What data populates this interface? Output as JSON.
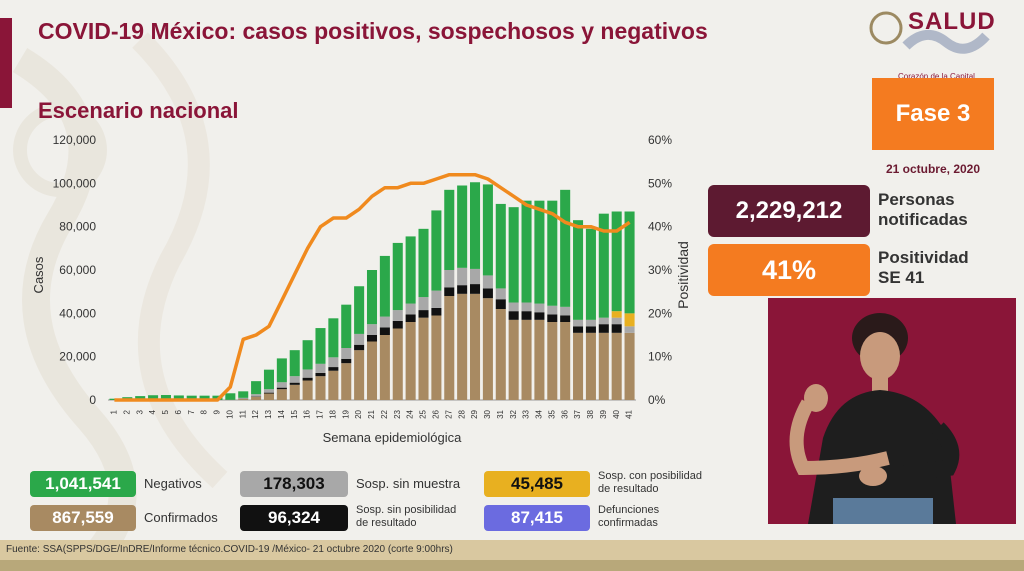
{
  "header": {
    "title": "COVID-19 México: casos positivos, sospechosos y negativos",
    "subtitle": "Escenario nacional"
  },
  "branding": {
    "logo_text": "SALUD",
    "tagline": "Corazón de la Capital"
  },
  "phase": {
    "label": "Fase 3",
    "date": "21 octubre, 2020"
  },
  "stats": {
    "notified_value": "2,229,212",
    "notified_label_line1": "Personas",
    "notified_label_line2": "notificadas",
    "positivity_value": "41%",
    "positivity_label_line1": "Positividad",
    "positivity_label_line2": "SE 41"
  },
  "legend": {
    "negativos": {
      "value": "1,041,541",
      "label": "Negativos"
    },
    "sosp_sin_muestra": {
      "value": "178,303",
      "label": "Sosp. sin muestra"
    },
    "sosp_con_posibilidad": {
      "value": "45,485",
      "label_line1": "Sosp. con posibilidad",
      "label_line2": "de resultado"
    },
    "confirmados": {
      "value": "867,559",
      "label": "Confirmados"
    },
    "sosp_sin_posibilidad": {
      "value": "96,324",
      "label_line1": "Sosp. sin posibilidad",
      "label_line2": "de resultado"
    },
    "defunciones": {
      "value": "87,415",
      "label_line1": "Defunciones",
      "label_line2": "confirmadas"
    }
  },
  "footer": {
    "source": "Fuente: SSA(SPPS/DGE/InDRE/Informe técnico.COVID-19 /México- 21 octubre 2020 (corte 9:00hrs)"
  },
  "colors": {
    "confirmados": "#a88a62",
    "sosp_sin_posibilidad": "#111111",
    "sosp_sin_muestra": "#a8a8a8",
    "sosp_con_posibilidad": "#e8b020",
    "negativos": "#2ba84a",
    "positividad_line": "#f08a1e",
    "defunciones": "#6b6be0"
  },
  "chart_data": {
    "type": "bar",
    "stacked": true,
    "xlabel": "Semana epidemiológica",
    "ylabel": "Casos",
    "y2label": "Positividad",
    "ylim": [
      0,
      120000
    ],
    "y2lim": [
      0,
      60
    ],
    "yticks": [
      "0",
      "20,000",
      "40,000",
      "60,000",
      "80,000",
      "100,000",
      "120,000"
    ],
    "y2ticks": [
      "0%",
      "10%",
      "20%",
      "30%",
      "40%",
      "50%",
      "60%"
    ],
    "categories": [
      "1",
      "2",
      "3",
      "4",
      "5",
      "6",
      "7",
      "8",
      "9",
      "10",
      "11",
      "12",
      "13",
      "14",
      "15",
      "16",
      "17",
      "18",
      "19",
      "20",
      "21",
      "22",
      "23",
      "24",
      "25",
      "26",
      "27",
      "28",
      "29",
      "30",
      "31",
      "32",
      "33",
      "34",
      "35",
      "36",
      "37",
      "38",
      "39",
      "40",
      "41"
    ],
    "series": [
      {
        "name": "Confirmados",
        "values": [
          0,
          0,
          0,
          0,
          0,
          0,
          0,
          0,
          0,
          100,
          500,
          1500,
          3000,
          5000,
          7000,
          9000,
          11000,
          13500,
          17000,
          23000,
          27000,
          30000,
          33000,
          36000,
          38000,
          39000,
          48000,
          49000,
          49000,
          47000,
          42000,
          37000,
          37000,
          37000,
          36000,
          36000,
          31000,
          31000,
          31000,
          31000,
          31000
        ]
      },
      {
        "name": "Sosp. sin posibilidad de resultado",
        "values": [
          0,
          0,
          0,
          0,
          0,
          0,
          0,
          0,
          0,
          0,
          100,
          200,
          400,
          700,
          1000,
          1300,
          1500,
          1700,
          2000,
          2500,
          3000,
          3500,
          3500,
          3500,
          3500,
          3500,
          4000,
          4000,
          4500,
          4500,
          4500,
          4000,
          4000,
          3500,
          3500,
          3000,
          3000,
          3000,
          4000,
          4000,
          0
        ]
      },
      {
        "name": "Sosp. sin muestra",
        "values": [
          0,
          0,
          0,
          0,
          0,
          0,
          0,
          0,
          0,
          0,
          400,
          1000,
          1600,
          2500,
          3000,
          3800,
          4200,
          4500,
          5000,
          5000,
          5000,
          5000,
          5000,
          5000,
          6000,
          8000,
          8000,
          8000,
          7000,
          6000,
          5000,
          4000,
          4000,
          4000,
          4000,
          4000,
          3000,
          3000,
          3000,
          3000,
          3000
        ]
      },
      {
        "name": "Sosp. con posibilidad de resultado",
        "values": [
          0,
          0,
          0,
          0,
          0,
          0,
          0,
          0,
          0,
          0,
          0,
          0,
          0,
          0,
          0,
          0,
          0,
          0,
          0,
          0,
          0,
          0,
          0,
          0,
          0,
          0,
          0,
          0,
          0,
          0,
          0,
          0,
          0,
          0,
          0,
          0,
          0,
          0,
          0,
          3000,
          6000
        ]
      },
      {
        "name": "Negativos",
        "values": [
          600,
          1300,
          1800,
          2200,
          2300,
          2100,
          2000,
          2000,
          2000,
          3000,
          3000,
          6000,
          9000,
          11000,
          12000,
          13500,
          16500,
          18000,
          20000,
          22000,
          25000,
          28000,
          31000,
          31000,
          31500,
          37000,
          37000,
          38000,
          40000,
          42000,
          39000,
          44000,
          47000,
          47500,
          48500,
          54000,
          46000,
          42000,
          48000,
          46000,
          47000
        ]
      }
    ],
    "positividad": [
      0,
      0,
      0,
      0,
      0,
      0,
      0,
      0,
      0,
      3,
      14,
      15,
      17,
      23,
      29,
      35,
      40,
      42,
      42,
      44,
      47,
      49,
      49,
      50,
      50,
      51,
      52,
      52,
      52,
      51,
      49,
      47,
      45,
      44,
      43,
      41,
      40,
      40,
      39,
      39,
      41
    ]
  }
}
